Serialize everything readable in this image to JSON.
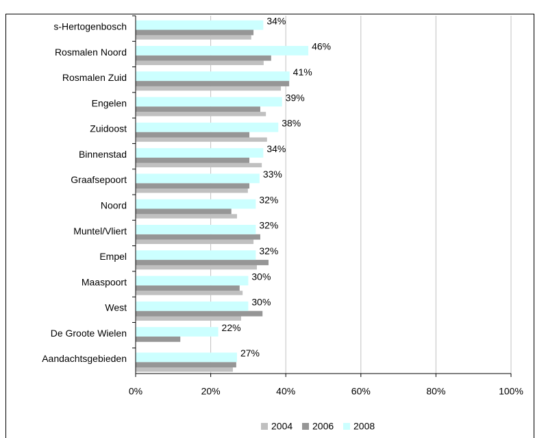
{
  "chart_data": {
    "type": "bar",
    "orientation": "horizontal",
    "categories": [
      "s-Hertogenbosch",
      "Rosmalen Noord",
      "Rosmalen Zuid",
      "Engelen",
      "Zuidoost",
      "Binnenstad",
      "Graafsepoort",
      "Noord",
      "Muntel/Vliert",
      "Empel",
      "Maaspoort",
      "West",
      "De Groote Wielen",
      "Aandachtsgebieden"
    ],
    "series": [
      {
        "name": "2004",
        "color": "#c0c0c0",
        "values": [
          30.8,
          34.1,
          38.7,
          34.7,
          35,
          33.6,
          29.9,
          27,
          31.4,
          32.3,
          28.5,
          28.1,
          null,
          25.9
        ]
      },
      {
        "name": "2006",
        "color": "#969696",
        "values": [
          31.4,
          36.1,
          40.9,
          33.2,
          30.3,
          30.3,
          30.3,
          25.5,
          33.2,
          35.4,
          27.7,
          33.8,
          11.9,
          26.8
        ]
      },
      {
        "name": "2008",
        "color": "#ccffff",
        "values": [
          34,
          46,
          41,
          39,
          38,
          34,
          33,
          32,
          32,
          32,
          30,
          30,
          22,
          27
        ],
        "value_labels": [
          "34%",
          "46%",
          "41%",
          "39%",
          "38%",
          "34%",
          "33%",
          "32%",
          "32%",
          "32%",
          "30%",
          "30%",
          "22%",
          "27%"
        ]
      }
    ],
    "xlim": [
      0,
      100
    ],
    "xticks": [
      {
        "value": 0,
        "label": "0%"
      },
      {
        "value": 20,
        "label": "20%"
      },
      {
        "value": 40,
        "label": "40%"
      },
      {
        "value": 60,
        "label": "60%"
      },
      {
        "value": 80,
        "label": "80%"
      },
      {
        "value": 100,
        "label": "100%"
      }
    ],
    "grid": true,
    "legend": "bottom"
  }
}
